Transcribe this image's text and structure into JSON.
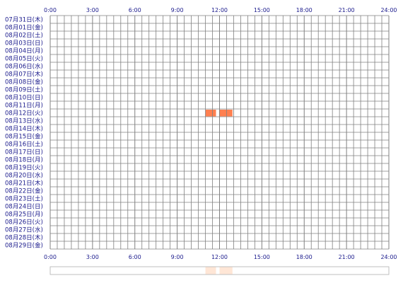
{
  "chart_data": {
    "type": "heatmap",
    "x_ticks": [
      "0:00",
      "3:00",
      "6:00",
      "9:00",
      "12:00",
      "15:00",
      "18:00",
      "21:00",
      "24:00"
    ],
    "x_range_hours": [
      0,
      24
    ],
    "cell_minutes": 30,
    "rows": [
      "07月31日(木)",
      "08月01日(金)",
      "08月02日(土)",
      "08月03日(日)",
      "08月04日(月)",
      "08月05日(火)",
      "08月06日(水)",
      "08月07日(木)",
      "08月08日(金)",
      "08月09日(土)",
      "08月10日(日)",
      "08月11日(月)",
      "08月12日(火)",
      "08月13日(水)",
      "08月14日(木)",
      "08月15日(金)",
      "08月16日(土)",
      "08月17日(日)",
      "08月18日(月)",
      "08月19日(火)",
      "08月20日(水)",
      "08月21日(木)",
      "08月22日(金)",
      "08月23日(土)",
      "08月24日(日)",
      "08月25日(月)",
      "08月26日(火)",
      "08月27日(水)",
      "08月28日(木)",
      "08月29日(金)"
    ],
    "active": [
      {
        "row": "08月12日(火)",
        "start": "11:00",
        "end": "11:45"
      },
      {
        "row": "08月12日(火)",
        "start": "12:00",
        "end": "12:30"
      },
      {
        "row": "08月12日(火)",
        "start": "12:30",
        "end": "12:55"
      }
    ],
    "summary_active": [
      {
        "start": "11:00",
        "end": "11:45"
      },
      {
        "start": "12:00",
        "end": "12:30"
      },
      {
        "start": "12:30",
        "end": "12:55"
      }
    ],
    "grid": true,
    "colors": {
      "active": "#ff8050",
      "summary": "#ffe6d6",
      "grid": "#808080",
      "label": "#1a1a8c"
    }
  }
}
